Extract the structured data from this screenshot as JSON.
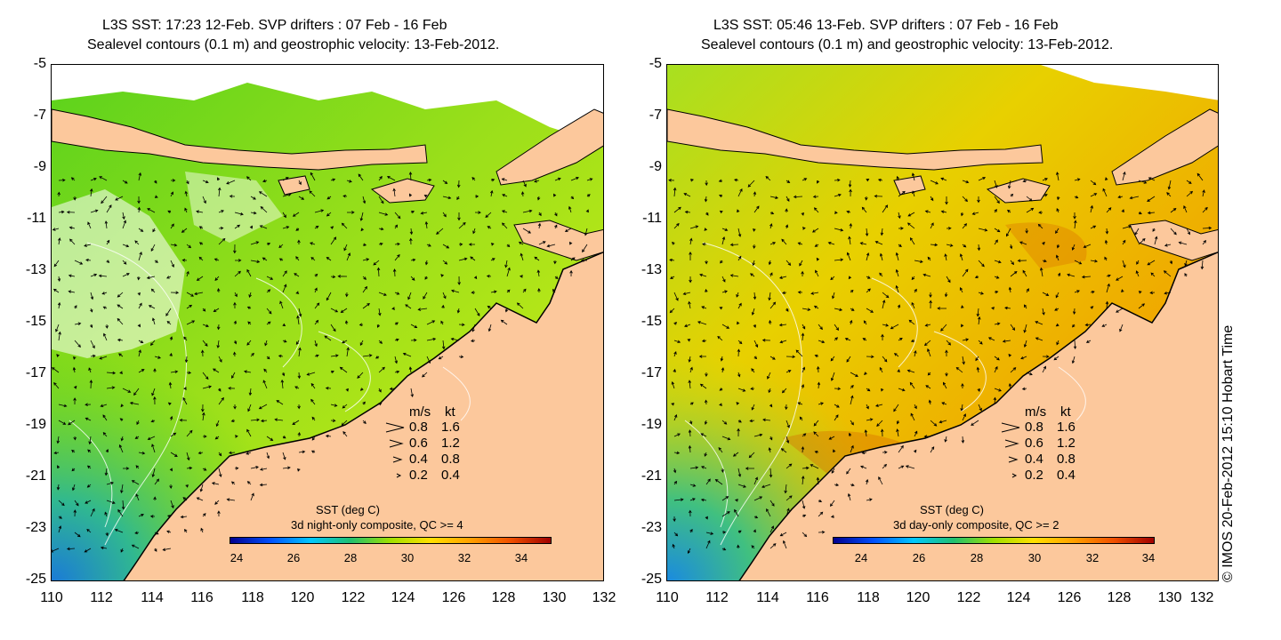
{
  "panels": [
    {
      "title1": "L3S SST: 17:23 12-Feb. SVP drifters : 07 Feb - 16 Feb",
      "title2": "Sealevel contours (0.1 m) and geostrophic velocity: 13-Feb-2012.",
      "colorbar_title1": "SST (deg C)",
      "colorbar_title2": "3d night-only composite, QC >= 4",
      "style": "night"
    },
    {
      "title1": "L3S SST: 05:46 13-Feb. SVP drifters : 07 Feb - 16 Feb",
      "title2": "Sealevel contours (0.1 m) and geostrophic velocity: 13-Feb-2012.",
      "colorbar_title1": "SST (deg C)",
      "colorbar_title2": "3d day-only composite, QC >= 2",
      "style": "day"
    }
  ],
  "lat_ticks": [
    "-5",
    "-7",
    "-9",
    "-11",
    "-13",
    "-15",
    "-17",
    "-19",
    "-21",
    "-23",
    "-25"
  ],
  "lon_ticks": [
    "110",
    "112",
    "114",
    "116",
    "118",
    "120",
    "122",
    "124",
    "126",
    "128",
    "130",
    "132"
  ],
  "velocity_legend": {
    "header_ms": "m/s",
    "header_kt": "kt",
    "rows": [
      {
        "ms": "0.8",
        "kt": "1.6",
        "arrow": 0.8
      },
      {
        "ms": "0.6",
        "kt": "1.2",
        "arrow": 0.6
      },
      {
        "ms": "0.4",
        "kt": "0.8",
        "arrow": 0.4
      },
      {
        "ms": "0.2",
        "kt": "0.4",
        "arrow": 0.2
      }
    ]
  },
  "colorbar_ticks": [
    "24",
    "26",
    "28",
    "30",
    "32",
    "34"
  ],
  "colors": {
    "land": "#fcc89c",
    "coast": "#000000",
    "night_sst": "#b8ea1a",
    "day_sst": "#f0b000",
    "colorbar": [
      "#00008f",
      "#0060ff",
      "#00d0ff",
      "#20c060",
      "#c0e000",
      "#ffd000",
      "#ff8000",
      "#c02000",
      "#800000"
    ]
  },
  "credit": "© IMOS 20-Feb-2012 15:10 Hobart Time"
}
